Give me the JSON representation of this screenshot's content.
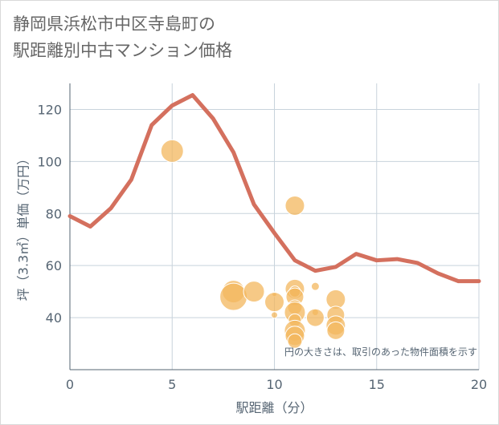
{
  "title": {
    "line1": "静岡県浜松市中区寺島町の",
    "line2": "駅距離別中古マンション価格"
  },
  "colors": {
    "line": "#d4705e",
    "bubble_fill": "#f3b75e",
    "bubble_stroke": "#ffffff",
    "grid": "#c8d3dc",
    "axis": "#566573"
  },
  "chart_data": {
    "type": "line+bubble",
    "xlabel": "駅距離（分）",
    "ylabel": "坪（3.3㎡）単価（万円）",
    "xlim": [
      0,
      20
    ],
    "ylim": [
      20,
      130
    ],
    "xticks": [
      0,
      5,
      10,
      15,
      20
    ],
    "yticks": [
      40,
      60,
      80,
      100,
      120
    ],
    "note": "円の大きさは、取引のあった物件面積を示す",
    "line": {
      "x": [
        0,
        1,
        2,
        3,
        4,
        5,
        6,
        7,
        8,
        9,
        10,
        11,
        12,
        13,
        14,
        15,
        16,
        17,
        18,
        19,
        20
      ],
      "y": [
        79,
        75,
        82,
        93,
        114,
        121.5,
        125.5,
        116.5,
        103.5,
        83.5,
        72.5,
        62,
        58,
        59.5,
        64.5,
        62,
        62.5,
        61,
        57,
        54,
        54
      ]
    },
    "bubbles": [
      {
        "x": 5,
        "y": 104,
        "size": 14
      },
      {
        "x": 8,
        "y": 50,
        "size": 14
      },
      {
        "x": 8,
        "y": 48,
        "size": 17
      },
      {
        "x": 9,
        "y": 50,
        "size": 13
      },
      {
        "x": 10,
        "y": 49,
        "size": 3
      },
      {
        "x": 10,
        "y": 46,
        "size": 12
      },
      {
        "x": 10,
        "y": 41,
        "size": 4
      },
      {
        "x": 11,
        "y": 83,
        "size": 12
      },
      {
        "x": 11,
        "y": 51,
        "size": 12
      },
      {
        "x": 11,
        "y": 50,
        "size": 7
      },
      {
        "x": 11,
        "y": 48,
        "size": 11
      },
      {
        "x": 11,
        "y": 44,
        "size": 9
      },
      {
        "x": 11,
        "y": 42,
        "size": 13
      },
      {
        "x": 11,
        "y": 39,
        "size": 8
      },
      {
        "x": 11,
        "y": 35,
        "size": 13
      },
      {
        "x": 11,
        "y": 33,
        "size": 12
      },
      {
        "x": 11,
        "y": 31,
        "size": 9
      },
      {
        "x": 12,
        "y": 52,
        "size": 5
      },
      {
        "x": 12,
        "y": 42,
        "size": 4
      },
      {
        "x": 12,
        "y": 40,
        "size": 11
      },
      {
        "x": 13,
        "y": 47,
        "size": 12
      },
      {
        "x": 13,
        "y": 41,
        "size": 11
      },
      {
        "x": 13,
        "y": 37,
        "size": 12
      },
      {
        "x": 13,
        "y": 35,
        "size": 11
      }
    ]
  }
}
